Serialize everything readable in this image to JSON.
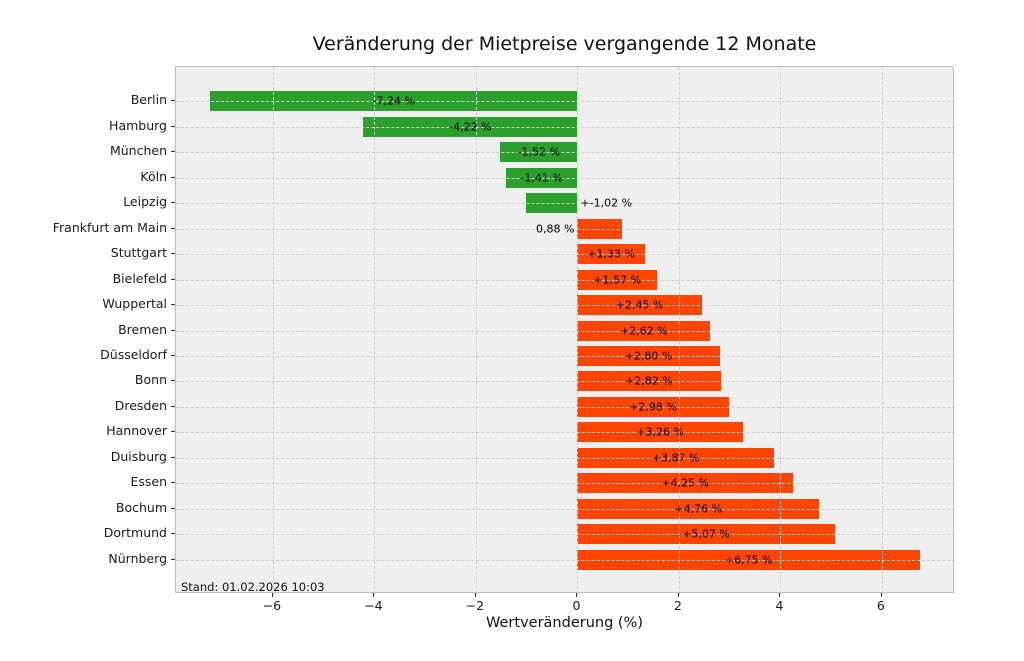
{
  "chart_data": {
    "type": "bar",
    "orientation": "horizontal",
    "title": "Veränderung der Mietpreise vergangende 12 Monate",
    "xlabel": "Wertveränderung (%)",
    "ylabel": "",
    "annotation": "Stand: 01.02.2026 10:03",
    "xlim": [
      -7.91,
      7.44
    ],
    "grid": {
      "style": "dashed",
      "axis": "both",
      "above_bars": true
    },
    "legend": null,
    "x_ticks": [
      {
        "value": -6,
        "label": "−6"
      },
      {
        "value": -4,
        "label": "−4"
      },
      {
        "value": -2,
        "label": "−2"
      },
      {
        "value": 0,
        "label": "0"
      },
      {
        "value": 2,
        "label": "2"
      },
      {
        "value": 4,
        "label": "4"
      },
      {
        "value": 6,
        "label": "6"
      }
    ],
    "bars": [
      {
        "category": "Berlin",
        "value": -7.24,
        "label": "-7,24 %",
        "label_placement": "center"
      },
      {
        "category": "Hamburg",
        "value": -4.22,
        "label": "-4,22 %",
        "label_placement": "center"
      },
      {
        "category": "München",
        "value": -1.52,
        "label": "-1,52 %",
        "label_placement": "center"
      },
      {
        "category": "Köln",
        "value": -1.41,
        "label": "-1,41 %",
        "label_placement": "center"
      },
      {
        "category": "Leipzig",
        "value": -1.02,
        "label": "+-1,02 %",
        "label_placement": "outside-right"
      },
      {
        "category": "Frankfurt am Main",
        "value": 0.88,
        "label": "0,88 %",
        "label_placement": "outside-left"
      },
      {
        "category": "Stuttgart",
        "value": 1.33,
        "label": "+1,33 %",
        "label_placement": "center"
      },
      {
        "category": "Bielefeld",
        "value": 1.57,
        "label": "+1,57 %",
        "label_placement": "center"
      },
      {
        "category": "Wuppertal",
        "value": 2.45,
        "label": "+2,45 %",
        "label_placement": "center"
      },
      {
        "category": "Bremen",
        "value": 2.62,
        "label": "+2,62 %",
        "label_placement": "center"
      },
      {
        "category": "Düsseldorf",
        "value": 2.8,
        "label": "+2,80 %",
        "label_placement": "center"
      },
      {
        "category": "Bonn",
        "value": 2.82,
        "label": "+2,82 %",
        "label_placement": "center"
      },
      {
        "category": "Dresden",
        "value": 2.98,
        "label": "+2,98 %",
        "label_placement": "center"
      },
      {
        "category": "Hannover",
        "value": 3.26,
        "label": "+3,26 %",
        "label_placement": "center"
      },
      {
        "category": "Duisburg",
        "value": 3.87,
        "label": "+3,87 %",
        "label_placement": "center"
      },
      {
        "category": "Essen",
        "value": 4.25,
        "label": "+4,25 %",
        "label_placement": "center"
      },
      {
        "category": "Bochum",
        "value": 4.76,
        "label": "+4,76 %",
        "label_placement": "center"
      },
      {
        "category": "Dortmund",
        "value": 5.07,
        "label": "+5,07 %",
        "label_placement": "center"
      },
      {
        "category": "Nürnberg",
        "value": 6.75,
        "label": "+6,75 %",
        "label_placement": "center"
      }
    ],
    "colors": {
      "negative": "#2ca02c",
      "positive": "#ff4500",
      "plot_background": "#efefef",
      "gridline": "#cdcdcd",
      "figure_background": "#ffffff"
    }
  }
}
